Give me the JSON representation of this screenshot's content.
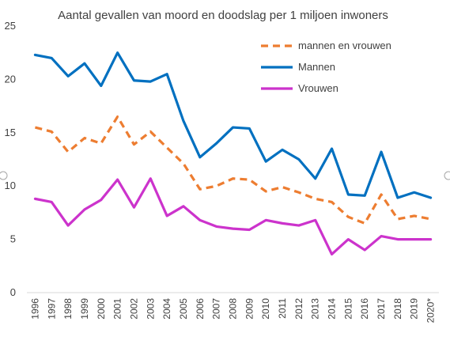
{
  "chart_data": {
    "type": "line",
    "title": "Aantal gevallen van moord en doodslag  per 1 miljoen inwoners",
    "xlabel": "",
    "ylabel": "",
    "categories": [
      "1996",
      "1997",
      "1998",
      "1999",
      "2000",
      "2001",
      "2002",
      "2003",
      "2004",
      "2005",
      "2006",
      "2007",
      "2008",
      "2009",
      "2010",
      "2011",
      "2012",
      "2013",
      "2014",
      "2015",
      "2016",
      "2017",
      "2018",
      "2019",
      "2020*"
    ],
    "ylim": [
      0,
      25
    ],
    "yticks": [
      "0",
      "5",
      "10",
      "15",
      "20",
      "25"
    ],
    "grid": false,
    "legend_position": "top-right",
    "series": [
      {
        "name": "mannen en vrouwen",
        "color": "#ED7D31",
        "style": "dashed",
        "values": [
          15.5,
          15.1,
          13.2,
          14.5,
          14.0,
          16.5,
          13.9,
          15.1,
          13.6,
          12.1,
          9.7,
          10.0,
          10.7,
          10.6,
          9.5,
          9.9,
          9.4,
          8.8,
          8.5,
          7.1,
          6.5,
          9.2,
          6.9,
          7.2,
          6.9
        ]
      },
      {
        "name": "Mannen",
        "color": "#0070C0",
        "style": "solid",
        "values": [
          22.3,
          22.0,
          20.3,
          21.5,
          19.4,
          22.5,
          19.9,
          19.8,
          20.5,
          16.1,
          12.7,
          14.0,
          15.5,
          15.4,
          12.3,
          13.4,
          12.5,
          10.7,
          13.5,
          9.2,
          9.1,
          13.2,
          8.9,
          9.4,
          8.9
        ]
      },
      {
        "name": "Vrouwen",
        "color": "#CC33CC",
        "style": "solid",
        "values": [
          8.8,
          8.5,
          6.3,
          7.8,
          8.7,
          10.6,
          8.0,
          10.7,
          7.2,
          8.1,
          6.8,
          6.2,
          6.0,
          5.9,
          6.8,
          6.5,
          6.3,
          6.8,
          3.6,
          5.0,
          4.0,
          5.3,
          5.0,
          5.0,
          5.0
        ]
      }
    ]
  }
}
